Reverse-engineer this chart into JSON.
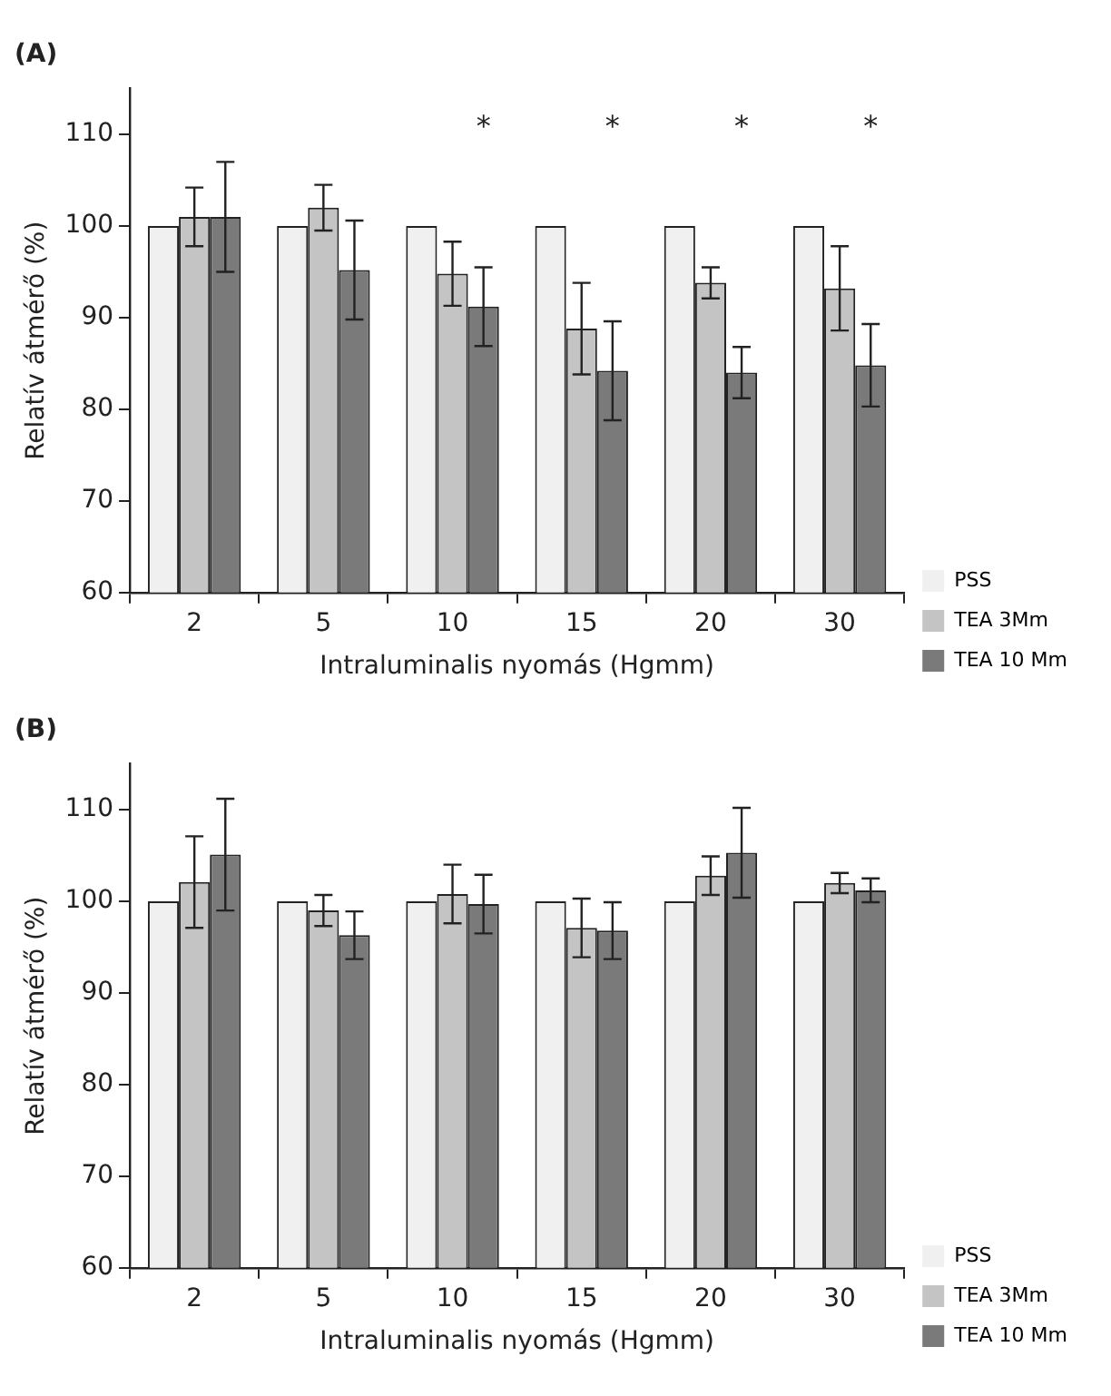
{
  "chart_data": [
    {
      "type": "bar",
      "title": "(A)",
      "xlabel": "Intraluminalis nyomás (Hgmm)",
      "ylabel": "Relatív átmérő (%)",
      "categories": [
        "2",
        "5",
        "10",
        "15",
        "20",
        "30"
      ],
      "series": [
        {
          "name": "PSS",
          "color": "#f0f0f0",
          "values": [
            100,
            100,
            100,
            100,
            100,
            100
          ]
        },
        {
          "name": "TEA 3Mm",
          "color": "#c4c4c4",
          "values": [
            101,
            102,
            94.8,
            88.8,
            93.8,
            93.2
          ],
          "errors": [
            3.2,
            2.5,
            3.5,
            5,
            1.7,
            4.6
          ]
        },
        {
          "name": "TEA 10 Mm",
          "color": "#7a7a7a",
          "values": [
            101,
            95.2,
            91.2,
            84.2,
            84,
            84.8
          ],
          "errors": [
            6,
            5.4,
            4.3,
            5.4,
            2.8,
            4.5
          ]
        }
      ],
      "ylim": [
        60,
        115
      ],
      "yticks": [
        60,
        70,
        80,
        90,
        100,
        110
      ],
      "grid": false,
      "legend": "bottom right",
      "annotations": [
        "*",
        "*",
        "*",
        "*"
      ]
    },
    {
      "type": "bar",
      "title": "(B)",
      "xlabel": "Intraluminalis nyomás (Hgmm)",
      "ylabel": "Relatív átmérő (%)",
      "categories": [
        "2",
        "5",
        "10",
        "15",
        "20",
        "30"
      ],
      "series": [
        {
          "name": "PSS",
          "color": "#f0f0f0",
          "values": [
            100,
            100,
            100,
            100,
            100,
            100
          ]
        },
        {
          "name": "TEA 3Mm",
          "color": "#c4c4c4",
          "values": [
            102.1,
            99,
            100.8,
            97.1,
            102.8,
            102
          ],
          "errors": [
            5,
            1.7,
            3.2,
            3.2,
            2.1,
            1.1
          ]
        },
        {
          "name": "TEA 10 Mm",
          "color": "#7a7a7a",
          "values": [
            105.1,
            96.3,
            99.7,
            96.8,
            105.3,
            101.2
          ],
          "errors": [
            6.1,
            2.6,
            3.2,
            3.1,
            4.9,
            1.3
          ]
        }
      ],
      "ylim": [
        60,
        115
      ],
      "yticks": [
        60,
        70,
        80,
        90,
        100,
        110
      ],
      "grid": false,
      "legend": "bottom right"
    }
  ]
}
